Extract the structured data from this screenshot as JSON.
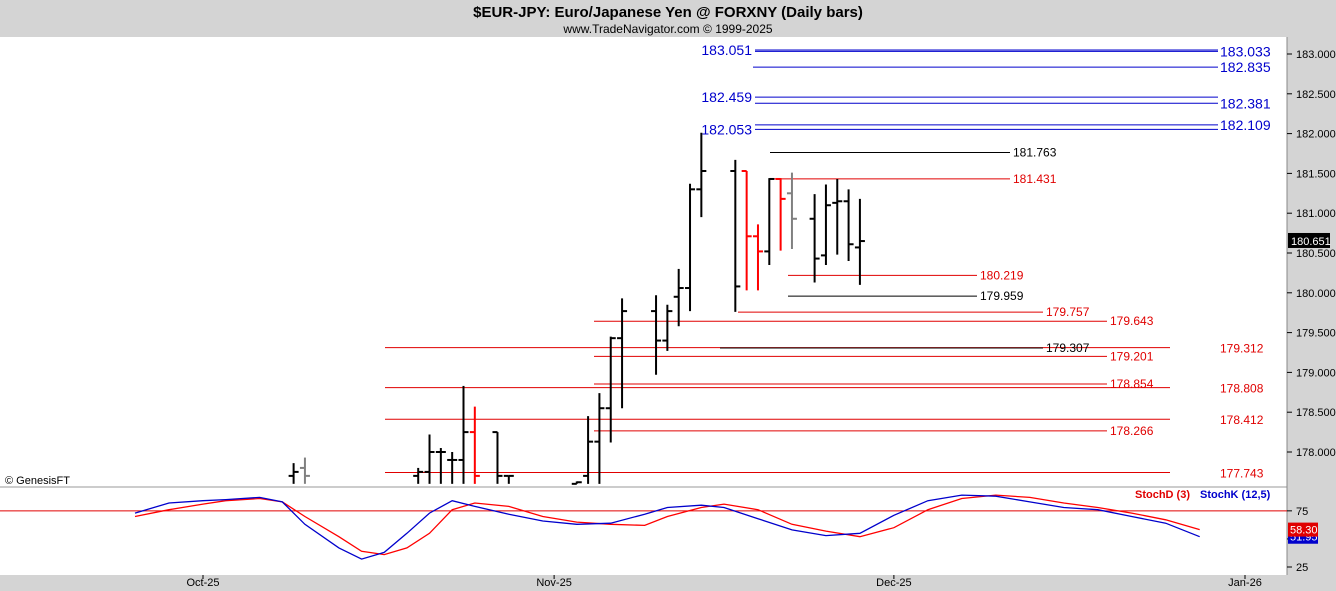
{
  "header": {
    "title": "$EUR-JPY:  Euro/Japanese Yen @ FORXNY  (Daily bars)",
    "subtitle": "www.TradeNavigator.com © 1999-2025"
  },
  "copyright": "© GenesisFT",
  "colors": {
    "background": "#ffffff",
    "frame": "#d4d4d4",
    "up_bar": "#000000",
    "down_bar": "#ff0000",
    "neutral_bar": "#808080",
    "level_blue": "#0000cc",
    "level_red": "#e00000",
    "level_black": "#000000",
    "stochD": "#e00000",
    "stochK": "#0000cc"
  },
  "chart_data": [
    {
      "type": "ohlc",
      "name": "price",
      "ylim": [
        177.6,
        183.3
      ],
      "y_ticks": [
        "183.000",
        "182.500",
        "182.000",
        "181.500",
        "181.000",
        "180.500",
        "180.000",
        "179.500",
        "179.000",
        "178.500",
        "178.000"
      ],
      "last_price": "180.651",
      "x_ticks": [
        "Oct-25",
        "Nov-25",
        "Dec-25",
        "Jan-26"
      ],
      "bars": [
        {
          "date": "2025-10-09",
          "h": 177.86,
          "l": 177.6,
          "o": 177.7,
          "c": 177.75,
          "color": "black"
        },
        {
          "date": "2025-10-10",
          "h": 177.93,
          "l": 177.6,
          "o": 177.8,
          "c": 177.7,
          "color": "gray"
        },
        {
          "date": "2025-10-20",
          "h": 177.8,
          "l": 177.6,
          "o": 177.7,
          "c": 177.75,
          "color": "black"
        },
        {
          "date": "2025-10-21",
          "h": 178.22,
          "l": 177.6,
          "o": 177.75,
          "c": 178.0,
          "color": "black"
        },
        {
          "date": "2025-10-22",
          "h": 178.05,
          "l": 177.6,
          "o": 178.0,
          "c": 178.0,
          "color": "black"
        },
        {
          "date": "2025-10-23",
          "h": 178.0,
          "l": 177.6,
          "o": 177.9,
          "c": 177.9,
          "color": "black"
        },
        {
          "date": "2025-10-24",
          "h": 178.83,
          "l": 177.6,
          "o": 177.9,
          "c": 178.25,
          "color": "black"
        },
        {
          "date": "2025-10-25",
          "h": 178.57,
          "l": 177.6,
          "o": 178.25,
          "c": 177.7,
          "color": "red"
        },
        {
          "date": "2025-10-27",
          "h": 178.25,
          "l": 177.6,
          "o": 178.25,
          "c": 177.7,
          "color": "black"
        },
        {
          "date": "2025-10-28",
          "h": 177.7,
          "l": 177.6,
          "o": 177.7,
          "c": 177.7,
          "color": "black"
        },
        {
          "date": "2025-11-03",
          "h": 177.63,
          "l": 177.6,
          "o": 177.6,
          "c": 177.62,
          "color": "black"
        },
        {
          "date": "2025-11-04",
          "h": 178.45,
          "l": 177.6,
          "o": 177.7,
          "c": 178.13,
          "color": "black"
        },
        {
          "date": "2025-11-05",
          "h": 178.74,
          "l": 177.6,
          "o": 178.13,
          "c": 178.55,
          "color": "black"
        },
        {
          "date": "2025-11-06",
          "h": 179.45,
          "l": 178.12,
          "o": 178.55,
          "c": 179.43,
          "color": "black"
        },
        {
          "date": "2025-11-07",
          "h": 179.93,
          "l": 178.55,
          "o": 179.43,
          "c": 179.77,
          "color": "black"
        },
        {
          "date": "2025-11-10",
          "h": 179.97,
          "l": 178.97,
          "o": 179.77,
          "c": 179.4,
          "color": "black"
        },
        {
          "date": "2025-11-11",
          "h": 179.85,
          "l": 179.27,
          "o": 179.4,
          "c": 179.77,
          "color": "black"
        },
        {
          "date": "2025-11-12",
          "h": 180.3,
          "l": 179.58,
          "o": 179.95,
          "c": 180.06,
          "color": "black"
        },
        {
          "date": "2025-11-13",
          "h": 181.37,
          "l": 179.77,
          "o": 180.06,
          "c": 181.3,
          "color": "black"
        },
        {
          "date": "2025-11-14",
          "h": 182.01,
          "l": 180.95,
          "o": 181.3,
          "c": 181.53,
          "color": "black"
        },
        {
          "date": "2025-11-17",
          "h": 181.67,
          "l": 179.76,
          "o": 181.53,
          "c": 180.08,
          "color": "black"
        },
        {
          "date": "2025-11-18",
          "h": 181.53,
          "l": 180.03,
          "o": 181.53,
          "c": 180.71,
          "color": "red"
        },
        {
          "date": "2025-11-19",
          "h": 180.86,
          "l": 180.03,
          "o": 180.71,
          "c": 180.52,
          "color": "red"
        },
        {
          "date": "2025-11-20",
          "h": 181.44,
          "l": 180.35,
          "o": 180.52,
          "c": 181.43,
          "color": "black"
        },
        {
          "date": "2025-11-21",
          "h": 181.44,
          "l": 180.53,
          "o": 181.43,
          "c": 181.18,
          "color": "red"
        },
        {
          "date": "2025-11-22",
          "h": 181.51,
          "l": 180.55,
          "o": 181.25,
          "c": 180.93,
          "color": "gray"
        },
        {
          "date": "2025-11-24",
          "h": 181.24,
          "l": 180.13,
          "o": 180.93,
          "c": 180.43,
          "color": "black"
        },
        {
          "date": "2025-11-25",
          "h": 181.36,
          "l": 180.35,
          "o": 180.47,
          "c": 181.1,
          "color": "black"
        },
        {
          "date": "2025-11-26",
          "h": 181.43,
          "l": 180.48,
          "o": 181.13,
          "c": 181.15,
          "color": "black"
        },
        {
          "date": "2025-11-27",
          "h": 181.3,
          "l": 180.4,
          "o": 181.15,
          "c": 180.61,
          "color": "black"
        },
        {
          "date": "2025-11-28",
          "h": 181.18,
          "l": 180.1,
          "o": 180.57,
          "c": 180.65,
          "color": "black"
        }
      ],
      "levels": [
        {
          "label": "183.051",
          "value": 183.051,
          "color": "blue",
          "side": "left"
        },
        {
          "label": "183.033",
          "value": 183.033,
          "color": "blue",
          "side": "right"
        },
        {
          "label": "182.835",
          "value": 182.835,
          "color": "blue",
          "side": "right"
        },
        {
          "label": "182.459",
          "value": 182.459,
          "color": "blue",
          "side": "left"
        },
        {
          "label": "182.381",
          "value": 182.381,
          "color": "blue",
          "side": "right"
        },
        {
          "label": "182.109",
          "value": 182.109,
          "color": "blue",
          "side": "right"
        },
        {
          "label": "182.053",
          "value": 182.053,
          "color": "blue",
          "side": "left"
        },
        {
          "label": "181.763",
          "value": 181.763,
          "color": "black",
          "side": "mid"
        },
        {
          "label": "181.431",
          "value": 181.431,
          "color": "red",
          "side": "mid"
        },
        {
          "label": "180.219",
          "value": 180.219,
          "color": "red",
          "side": "mid"
        },
        {
          "label": "179.959",
          "value": 179.959,
          "color": "black",
          "side": "mid"
        },
        {
          "label": "179.757",
          "value": 179.757,
          "color": "red",
          "side": "mid"
        },
        {
          "label": "179.643",
          "value": 179.643,
          "color": "red",
          "side": "mid"
        },
        {
          "label": "179.312",
          "value": 179.312,
          "color": "red",
          "side": "right"
        },
        {
          "label": "179.307",
          "value": 179.307,
          "color": "black",
          "side": "mid"
        },
        {
          "label": "179.201",
          "value": 179.201,
          "color": "red",
          "side": "mid"
        },
        {
          "label": "178.854",
          "value": 178.854,
          "color": "red",
          "side": "mid"
        },
        {
          "label": "178.808",
          "value": 178.808,
          "color": "red",
          "side": "right"
        },
        {
          "label": "178.412",
          "value": 178.412,
          "color": "red",
          "side": "right"
        },
        {
          "label": "178.266",
          "value": 178.266,
          "color": "red",
          "side": "mid"
        },
        {
          "label": "177.743",
          "value": 177.743,
          "color": "red",
          "side": "right"
        }
      ]
    },
    {
      "type": "line",
      "name": "stochastic",
      "ylim": [
        25,
        90
      ],
      "y_ticks": [
        "75",
        "50",
        "25"
      ],
      "reference_line": 75,
      "legend": [
        "StochD (3)",
        "StochK (12,5)"
      ],
      "last_values": [
        "58.30",
        "51.95"
      ],
      "series": [
        {
          "name": "StochD (3)",
          "color": "red",
          "points": [
            [
              "2025-09-25",
              70
            ],
            [
              "2025-09-28",
              76
            ],
            [
              "2025-10-01",
              81
            ],
            [
              "2025-10-03",
              84
            ],
            [
              "2025-10-06",
              86
            ],
            [
              "2025-10-08",
              83
            ],
            [
              "2025-10-10",
              70
            ],
            [
              "2025-10-13",
              52
            ],
            [
              "2025-10-15",
              39
            ],
            [
              "2025-10-17",
              36
            ],
            [
              "2025-10-19",
              42
            ],
            [
              "2025-10-21",
              55
            ],
            [
              "2025-10-23",
              76
            ],
            [
              "2025-10-25",
              82
            ],
            [
              "2025-10-28",
              79
            ],
            [
              "2025-10-31",
              70
            ],
            [
              "2025-11-03",
              65
            ],
            [
              "2025-11-06",
              63
            ],
            [
              "2025-11-09",
              62
            ],
            [
              "2025-11-11",
              70
            ],
            [
              "2025-11-14",
              78
            ],
            [
              "2025-11-16",
              81
            ],
            [
              "2025-11-19",
              76
            ],
            [
              "2025-11-22",
              63
            ],
            [
              "2025-11-25",
              57
            ],
            [
              "2025-11-28",
              52
            ],
            [
              "2025-12-01",
              60
            ],
            [
              "2025-12-04",
              76
            ],
            [
              "2025-12-07",
              86
            ],
            [
              "2025-12-10",
              89
            ],
            [
              "2025-12-13",
              87
            ],
            [
              "2025-12-16",
              82
            ],
            [
              "2025-12-19",
              78
            ],
            [
              "2025-12-22",
              73
            ],
            [
              "2025-12-25",
              67
            ],
            [
              "2025-12-28",
              58.3
            ]
          ]
        },
        {
          "name": "StochK (12,5)",
          "color": "blue",
          "points": [
            [
              "2025-09-25",
              73
            ],
            [
              "2025-09-28",
              82
            ],
            [
              "2025-10-01",
              84
            ],
            [
              "2025-10-03",
              85
            ],
            [
              "2025-10-06",
              87
            ],
            [
              "2025-10-08",
              83
            ],
            [
              "2025-10-10",
              63
            ],
            [
              "2025-10-13",
              42
            ],
            [
              "2025-10-15",
              32
            ],
            [
              "2025-10-17",
              38
            ],
            [
              "2025-10-19",
              55
            ],
            [
              "2025-10-21",
              73
            ],
            [
              "2025-10-23",
              84
            ],
            [
              "2025-10-25",
              79
            ],
            [
              "2025-10-28",
              72
            ],
            [
              "2025-10-31",
              66
            ],
            [
              "2025-11-03",
              63
            ],
            [
              "2025-11-06",
              64
            ],
            [
              "2025-11-09",
              72
            ],
            [
              "2025-11-11",
              78
            ],
            [
              "2025-11-14",
              80
            ],
            [
              "2025-11-16",
              78
            ],
            [
              "2025-11-19",
              68
            ],
            [
              "2025-11-22",
              58
            ],
            [
              "2025-11-25",
              53
            ],
            [
              "2025-11-28",
              55
            ],
            [
              "2025-12-01",
              71
            ],
            [
              "2025-12-04",
              84
            ],
            [
              "2025-12-07",
              89
            ],
            [
              "2025-12-10",
              88
            ],
            [
              "2025-12-13",
              83
            ],
            [
              "2025-12-16",
              78
            ],
            [
              "2025-12-19",
              76
            ],
            [
              "2025-12-22",
              70
            ],
            [
              "2025-12-25",
              64
            ],
            [
              "2025-12-28",
              51.95
            ]
          ]
        }
      ]
    }
  ]
}
